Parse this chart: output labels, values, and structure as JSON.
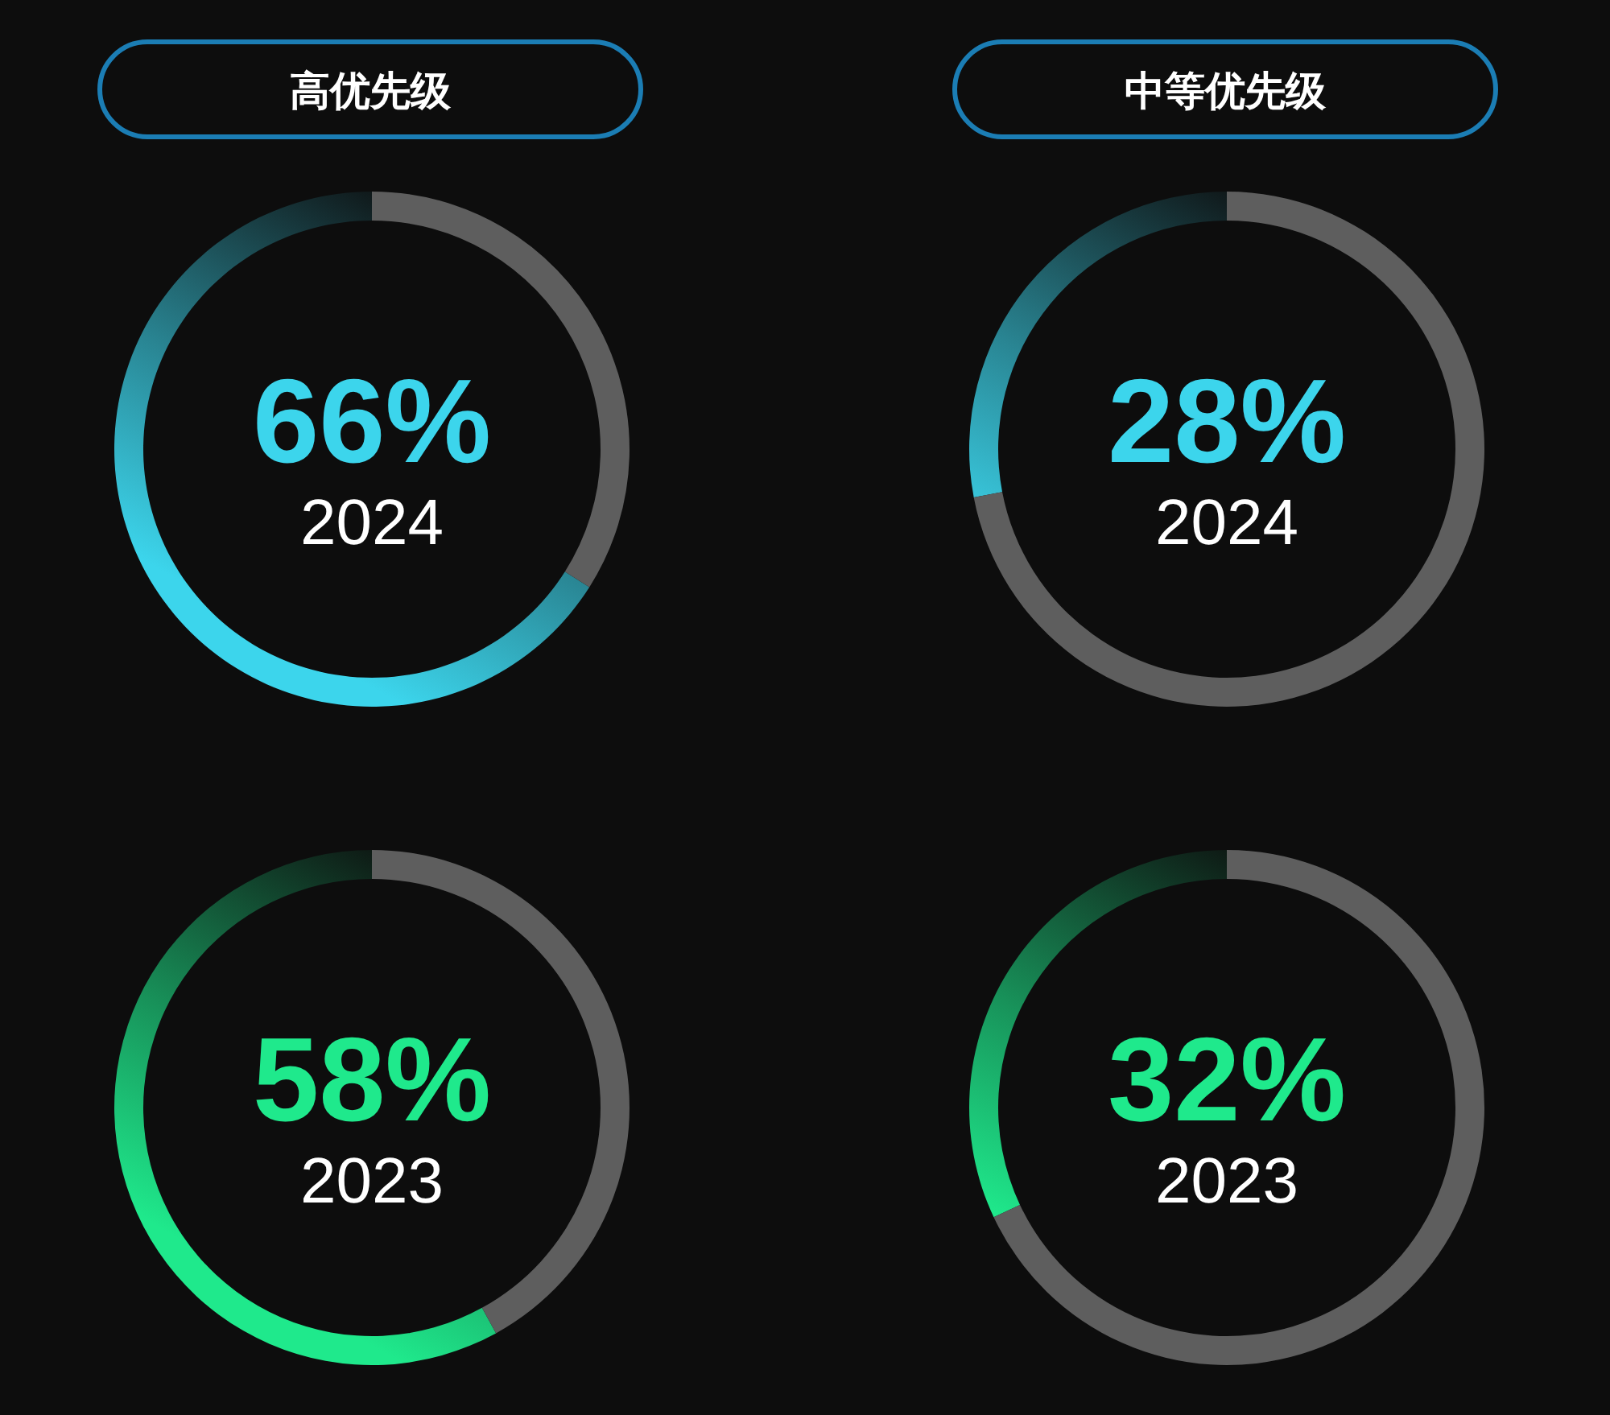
{
  "chart_data": [
    {
      "type": "donut",
      "title": "高优先级",
      "categories": [
        null,
        null
      ],
      "values": [
        66,
        34
      ],
      "colors": [
        "#3cd5ec",
        "#5e5e5e"
      ],
      "value_labels": [
        "66%",
        null
      ],
      "annotations": [
        "2024"
      ]
    },
    {
      "type": "donut",
      "title": "中等优先级",
      "categories": [
        null,
        null
      ],
      "values": [
        28,
        72
      ],
      "colors": [
        "#3cd5ec",
        "#5e5e5e"
      ],
      "value_labels": [
        "28%",
        null
      ],
      "annotations": [
        "2024"
      ]
    },
    {
      "type": "donut",
      "categories": [
        null,
        null
      ],
      "values": [
        58,
        42
      ],
      "colors": [
        "#1fe98c",
        "#5e5e5e"
      ],
      "value_labels": [
        "58%",
        null
      ],
      "annotations": [
        "2023"
      ]
    },
    {
      "type": "donut",
      "categories": [
        null,
        null
      ],
      "values": [
        32,
        68
      ],
      "colors": [
        "#1fe98c",
        "#5e5e5e"
      ],
      "value_labels": [
        "32%",
        null
      ],
      "annotations": [
        "2023"
      ]
    }
  ]
}
